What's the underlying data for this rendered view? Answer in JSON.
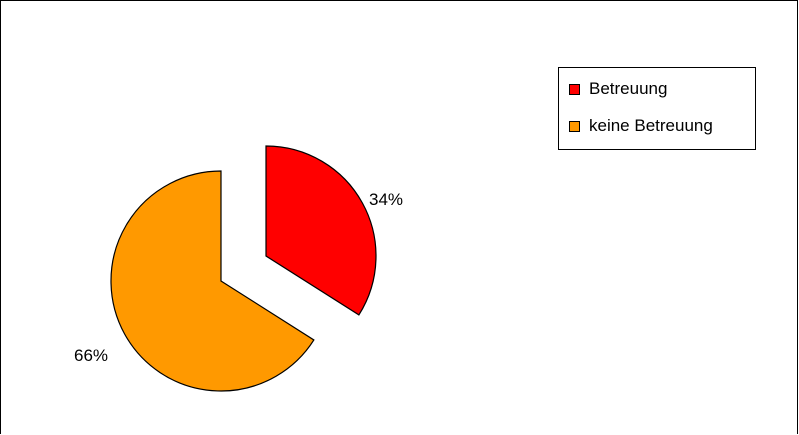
{
  "chart_data": {
    "type": "pie",
    "title": "",
    "exploded": true,
    "legend_position": "top-right",
    "slices": [
      {
        "name": "Betreuung",
        "value": 34,
        "label": "34%",
        "color": "#ff0000"
      },
      {
        "name": "keine Betreuung",
        "value": 66,
        "label": "66%",
        "color": "#ff9900"
      }
    ]
  }
}
